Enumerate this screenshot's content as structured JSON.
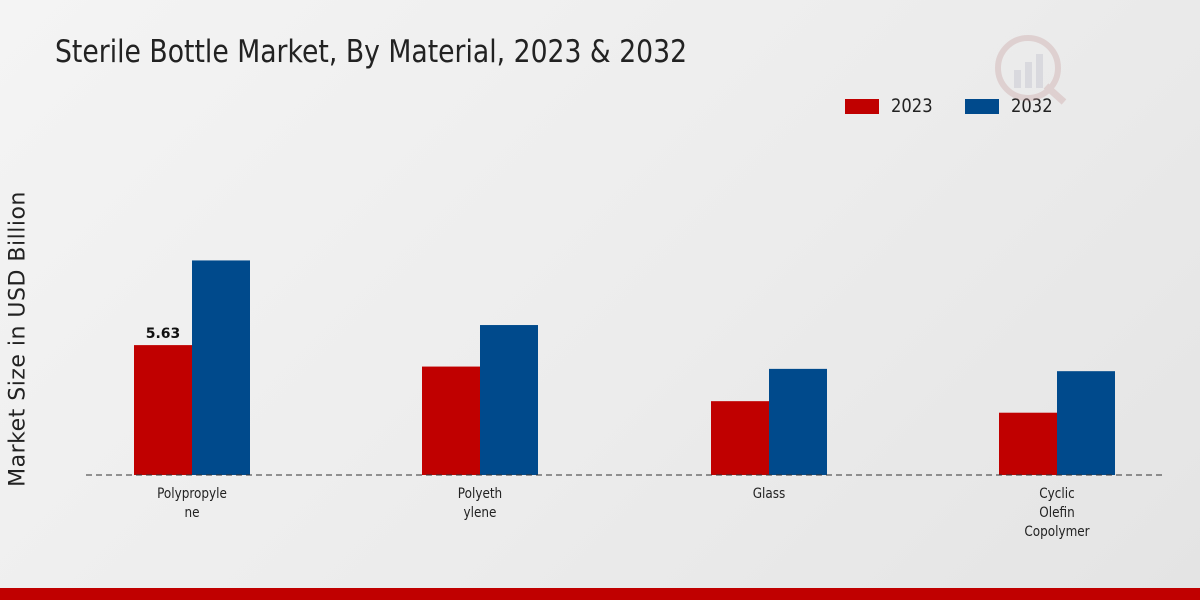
{
  "title": "Sterile Bottle Market, By Material, 2023 & 2032",
  "colors": {
    "2023": "#c00000",
    "2032": "#004a8c"
  },
  "legend": [
    {
      "label": "2023",
      "color": "#c00000"
    },
    {
      "label": "2032",
      "color": "#004a8c"
    }
  ],
  "chart_data": {
    "type": "bar",
    "title": "Sterile Bottle Market, By Material, 2023 & 2032",
    "ylabel": "Market Size in USD Billion",
    "xlabel": "",
    "categories": [
      "Polypropyle\nne",
      "Polyeth\nylene",
      "Glass",
      "Cyclic\nOlefin\nCopolymer"
    ],
    "series": [
      {
        "name": "2023",
        "color": "#c00000",
        "values": [
          5.63,
          4.7,
          3.2,
          2.7
        ]
      },
      {
        "name": "2032",
        "color": "#004a8c",
        "values": [
          9.3,
          6.5,
          4.6,
          4.5
        ]
      }
    ],
    "data_labels": [
      {
        "series": 0,
        "index": 0,
        "text": "5.63"
      }
    ],
    "ylim": [
      0,
      14
    ],
    "grid": false,
    "legend_position": "top-right"
  }
}
